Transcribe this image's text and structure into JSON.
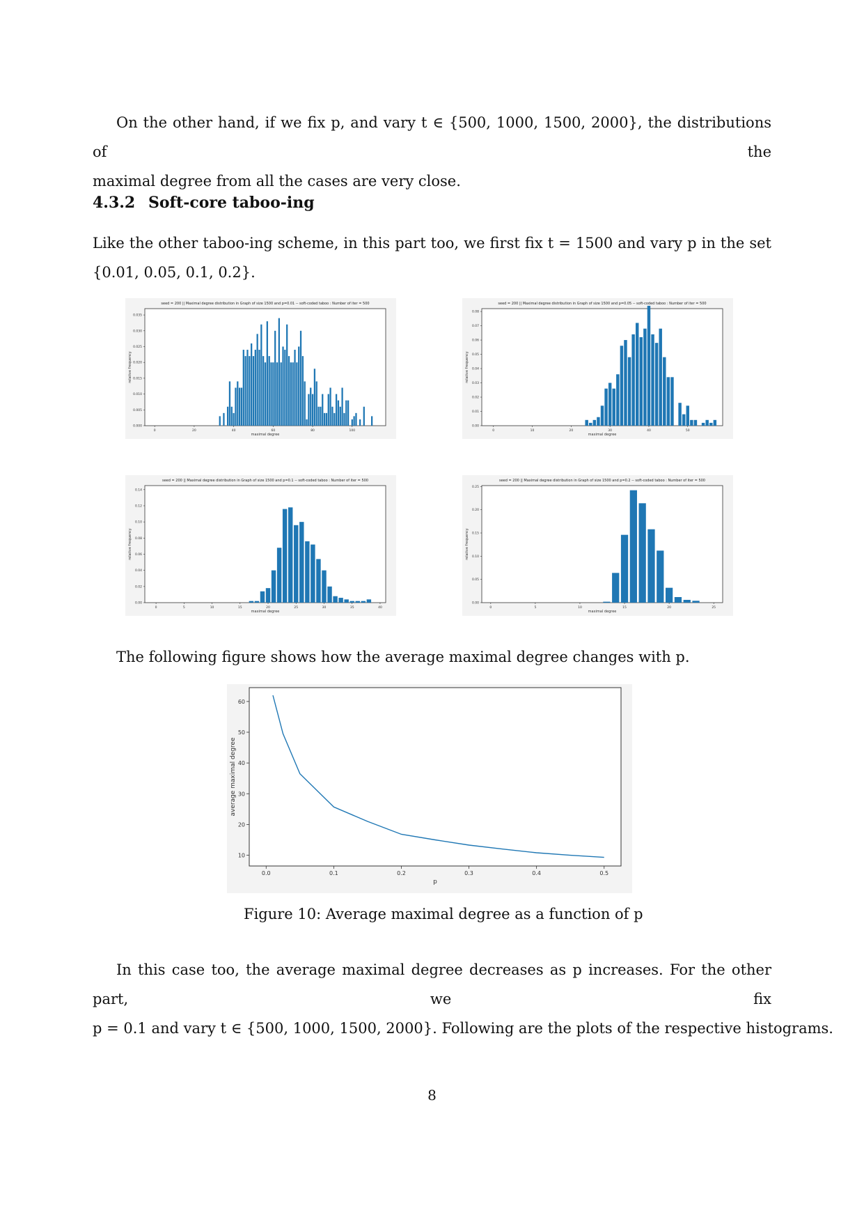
{
  "para1": {
    "line1": "On the other hand, if we fix p, and vary t ∈ {500, 1000, 1500, 2000}, the distributions of the",
    "line2": "maximal degree from all the cases are very close."
  },
  "section": {
    "number": "4.3.2",
    "title": "Soft-core taboo-ing"
  },
  "para2": {
    "line1": "Like the other taboo-ing scheme, in this part too, we first fix t = 1500 and vary p in the set",
    "line2": "{0.01, 0.05, 0.1, 0.2}."
  },
  "para3": "The following figure shows how the average maximal degree changes with p.",
  "figure10_caption": "Figure 10:  Average maximal degree as a function of p",
  "para4": {
    "line1": "In this case too, the average maximal degree decreases as p increases. For the other part, we fix",
    "line2": "p = 0.1 and vary t ∈ {500, 1000, 1500, 2000}. Following are the plots of the respective histograms."
  },
  "page_number": "8",
  "chart_data": [
    {
      "type": "bar",
      "title": "seed = 200 || Maximal degree distribution in Graph of size 1500 and p=0.01 -- soft-coded taboo : Number of iter = 500",
      "xlabel": "maximal degree",
      "ylabel": "relative frequency",
      "xlim": [
        -5,
        117
      ],
      "ylim": [
        0,
        0.037
      ],
      "xticks": [
        0,
        20,
        40,
        60,
        80,
        100
      ],
      "yticks": [
        0.0,
        0.005,
        0.01,
        0.015,
        0.02,
        0.025,
        0.03,
        0.035
      ],
      "ytick_labels": [
        "0.000",
        "0.005",
        "0.010",
        "0.015",
        "0.020",
        "0.025",
        "0.030",
        "0.035"
      ],
      "x": [
        33,
        35,
        37,
        38,
        39,
        40,
        41,
        42,
        43,
        44,
        45,
        46,
        47,
        48,
        49,
        50,
        51,
        52,
        53,
        54,
        55,
        56,
        57,
        58,
        59,
        60,
        61,
        62,
        63,
        64,
        65,
        66,
        67,
        68,
        69,
        70,
        71,
        72,
        73,
        74,
        75,
        76,
        77,
        78,
        79,
        80,
        81,
        82,
        83,
        84,
        85,
        86,
        87,
        88,
        89,
        90,
        91,
        92,
        93,
        94,
        95,
        96,
        97,
        98,
        100,
        101,
        102,
        104,
        106,
        110
      ],
      "values": [
        0.003,
        0.004,
        0.006,
        0.014,
        0.006,
        0.004,
        0.012,
        0.014,
        0.012,
        0.012,
        0.024,
        0.022,
        0.024,
        0.022,
        0.026,
        0.022,
        0.024,
        0.029,
        0.024,
        0.032,
        0.022,
        0.02,
        0.033,
        0.022,
        0.02,
        0.02,
        0.03,
        0.02,
        0.034,
        0.02,
        0.025,
        0.024,
        0.032,
        0.022,
        0.02,
        0.02,
        0.024,
        0.02,
        0.025,
        0.03,
        0.022,
        0.014,
        0.002,
        0.01,
        0.012,
        0.01,
        0.018,
        0.014,
        0.006,
        0.006,
        0.01,
        0.004,
        0.004,
        0.01,
        0.012,
        0.006,
        0.004,
        0.01,
        0.008,
        0.006,
        0.012,
        0.004,
        0.008,
        0.008,
        0.002,
        0.003,
        0.004,
        0.002,
        0.006,
        0.003
      ]
    },
    {
      "type": "bar",
      "title": "seed = 200 || Maximal degree distribution in Graph of size 1500 and p=0.05 -- soft-coded taboo : Number of iter = 500",
      "xlabel": "maximal degree",
      "ylabel": "relative frequency",
      "xlim": [
        -3,
        59
      ],
      "ylim": [
        0,
        0.082
      ],
      "xticks": [
        0,
        10,
        20,
        30,
        40,
        50
      ],
      "yticks": [
        0.0,
        0.01,
        0.02,
        0.03,
        0.04,
        0.05,
        0.06,
        0.07,
        0.08
      ],
      "ytick_labels": [
        "0.00",
        "0.01",
        "0.02",
        "0.03",
        "0.04",
        "0.05",
        "0.06",
        "0.07",
        "0.08"
      ],
      "x": [
        24,
        25,
        26,
        27,
        28,
        29,
        30,
        31,
        32,
        33,
        34,
        35,
        36,
        37,
        38,
        39,
        40,
        41,
        42,
        43,
        44,
        45,
        46,
        48,
        49,
        50,
        51,
        52,
        54,
        55,
        56,
        57
      ],
      "values": [
        0.004,
        0.002,
        0.004,
        0.006,
        0.014,
        0.026,
        0.03,
        0.026,
        0.036,
        0.056,
        0.06,
        0.048,
        0.064,
        0.072,
        0.062,
        0.068,
        0.084,
        0.064,
        0.058,
        0.068,
        0.048,
        0.034,
        0.034,
        0.016,
        0.008,
        0.014,
        0.004,
        0.004,
        0.002,
        0.004,
        0.002,
        0.004
      ]
    },
    {
      "type": "bar",
      "title": "seed = 200 || Maximal degree distribution in Graph of size 1500 and p=0.1 -- soft-coded taboo : Number of iter = 500",
      "xlabel": "maximal degree",
      "ylabel": "relative frequency",
      "xlim": [
        -2,
        41
      ],
      "ylim": [
        0,
        0.145
      ],
      "xticks": [
        0,
        5,
        10,
        15,
        20,
        25,
        30,
        35,
        40
      ],
      "yticks": [
        0.0,
        0.02,
        0.04,
        0.06,
        0.08,
        0.1,
        0.12,
        0.14
      ],
      "ytick_labels": [
        "0.00",
        "0.02",
        "0.04",
        "0.06",
        "0.08",
        "0.10",
        "0.12",
        "0.14"
      ],
      "x": [
        17,
        18,
        19,
        20,
        21,
        22,
        23,
        24,
        25,
        26,
        27,
        28,
        29,
        30,
        31,
        32,
        33,
        34,
        35,
        36,
        37,
        38
      ],
      "values": [
        0.002,
        0.002,
        0.014,
        0.018,
        0.04,
        0.068,
        0.116,
        0.118,
        0.096,
        0.1,
        0.076,
        0.072,
        0.054,
        0.04,
        0.02,
        0.008,
        0.006,
        0.004,
        0.002,
        0.002,
        0.002,
        0.004
      ]
    },
    {
      "type": "bar",
      "title": "seed = 200 || Maximal degree distribution in Graph of size 1500 and p=0.2 -- soft-coded taboo : Number of iter = 500",
      "xlabel": "maximal degree",
      "ylabel": "relative frequency",
      "xlim": [
        -1,
        26
      ],
      "ylim": [
        0,
        0.252
      ],
      "xticks": [
        0,
        5,
        10,
        15,
        20,
        25
      ],
      "yticks": [
        0.0,
        0.05,
        0.1,
        0.15,
        0.2,
        0.25
      ],
      "ytick_labels": [
        "0.00",
        "0.05",
        "0.10",
        "0.15",
        "0.20",
        "0.25"
      ],
      "x": [
        13,
        14,
        15,
        16,
        17,
        18,
        19,
        20,
        21,
        22,
        23
      ],
      "values": [
        0.002,
        0.064,
        0.146,
        0.242,
        0.214,
        0.158,
        0.112,
        0.032,
        0.012,
        0.006,
        0.004
      ]
    },
    {
      "type": "line",
      "xlabel": "p",
      "ylabel": "average maximal degree",
      "xlim": [
        -0.025,
        0.525
      ],
      "ylim": [
        6.5,
        64.5
      ],
      "xticks": [
        0.0,
        0.1,
        0.2,
        0.3,
        0.4,
        0.5
      ],
      "xtick_labels": [
        "0.0",
        "0.1",
        "0.2",
        "0.3",
        "0.4",
        "0.5"
      ],
      "yticks": [
        10,
        20,
        30,
        40,
        50,
        60
      ],
      "ytick_labels": [
        "10",
        "20",
        "30",
        "40",
        "50",
        "60"
      ],
      "color": "#1f77b4",
      "x": [
        0.01,
        0.025,
        0.05,
        0.1,
        0.15,
        0.2,
        0.25,
        0.3,
        0.35,
        0.4,
        0.45,
        0.5
      ],
      "values": [
        62,
        49.5,
        36.5,
        25.7,
        21,
        16.8,
        15,
        13.3,
        12,
        10.8,
        10,
        9.3
      ]
    }
  ]
}
